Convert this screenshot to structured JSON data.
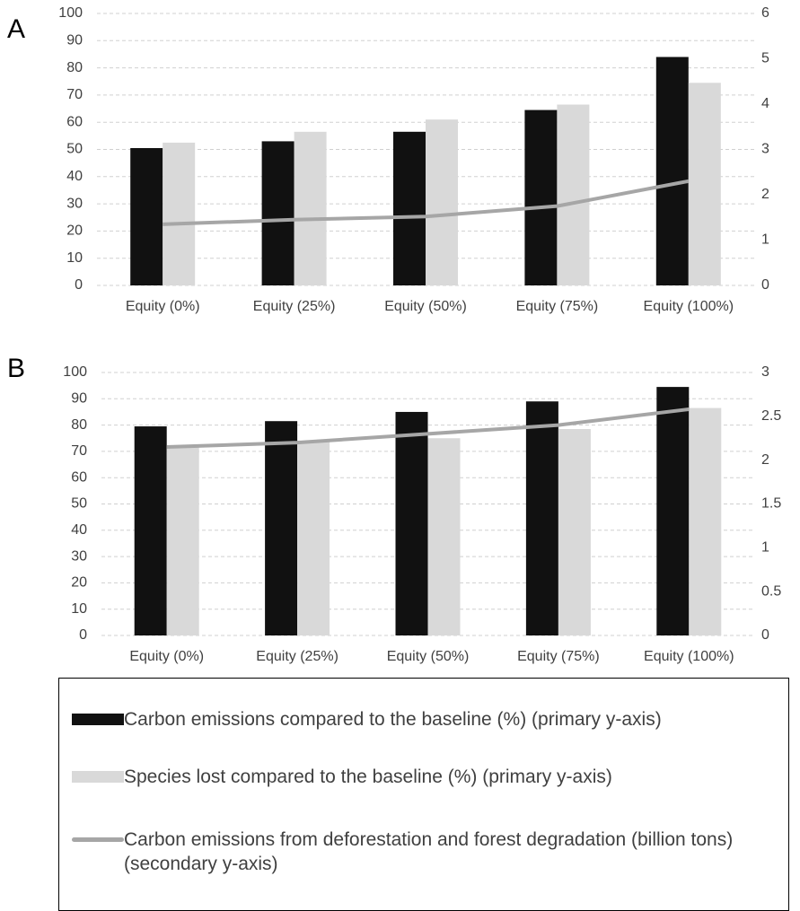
{
  "chart_data": [
    {
      "type": "bar-line",
      "panel_label": "A",
      "categories": [
        "Equity (0%)",
        "Equity (25%)",
        "Equity (50%)",
        "Equity (75%)",
        "Equity (100%)"
      ],
      "series": [
        {
          "name": "Carbon emissions compared to the baseline (%) (primary y-axis)",
          "type": "bar",
          "color": "#111111",
          "values": [
            50.5,
            53,
            56.5,
            64.5,
            84
          ]
        },
        {
          "name": "Species lost compared to the baseline (%) (primary y-axis)",
          "type": "bar",
          "color": "#d9d9d9",
          "values": [
            52.5,
            56.5,
            61,
            66.5,
            74.5
          ]
        },
        {
          "name": "Carbon emissions from deforestation and forest degradation (billion tons) (secondary y-axis)",
          "type": "line",
          "axis": "y2",
          "color": "#a6a6a6",
          "values": [
            1.35,
            1.45,
            1.52,
            1.75,
            2.3
          ]
        }
      ],
      "ylim": [
        0,
        100
      ],
      "yticks": [
        0,
        10,
        20,
        30,
        40,
        50,
        60,
        70,
        80,
        90,
        100
      ],
      "y2lim": [
        0,
        6
      ],
      "y2ticks": [
        0,
        1,
        2,
        3,
        4,
        5,
        6
      ],
      "grid": true
    },
    {
      "type": "bar-line",
      "panel_label": "B",
      "categories": [
        "Equity (0%)",
        "Equity (25%)",
        "Equity (50%)",
        "Equity (75%)",
        "Equity (100%)"
      ],
      "series": [
        {
          "type": "bar",
          "color": "#111111",
          "values": [
            79.5,
            81.5,
            85,
            89,
            94.5
          ]
        },
        {
          "type": "bar",
          "color": "#d9d9d9",
          "values": [
            72,
            74,
            75,
            78.5,
            86.5
          ]
        },
        {
          "type": "line",
          "axis": "y2",
          "color": "#a6a6a6",
          "values": [
            2.15,
            2.2,
            2.3,
            2.4,
            2.58
          ]
        }
      ],
      "ylim": [
        0,
        100
      ],
      "yticks": [
        0,
        10,
        20,
        30,
        40,
        50,
        60,
        70,
        80,
        90,
        100
      ],
      "y2lim": [
        0,
        3
      ],
      "y2ticks": [
        0,
        0.5,
        1,
        1.5,
        2,
        2.5,
        3
      ],
      "grid": true
    }
  ]
}
